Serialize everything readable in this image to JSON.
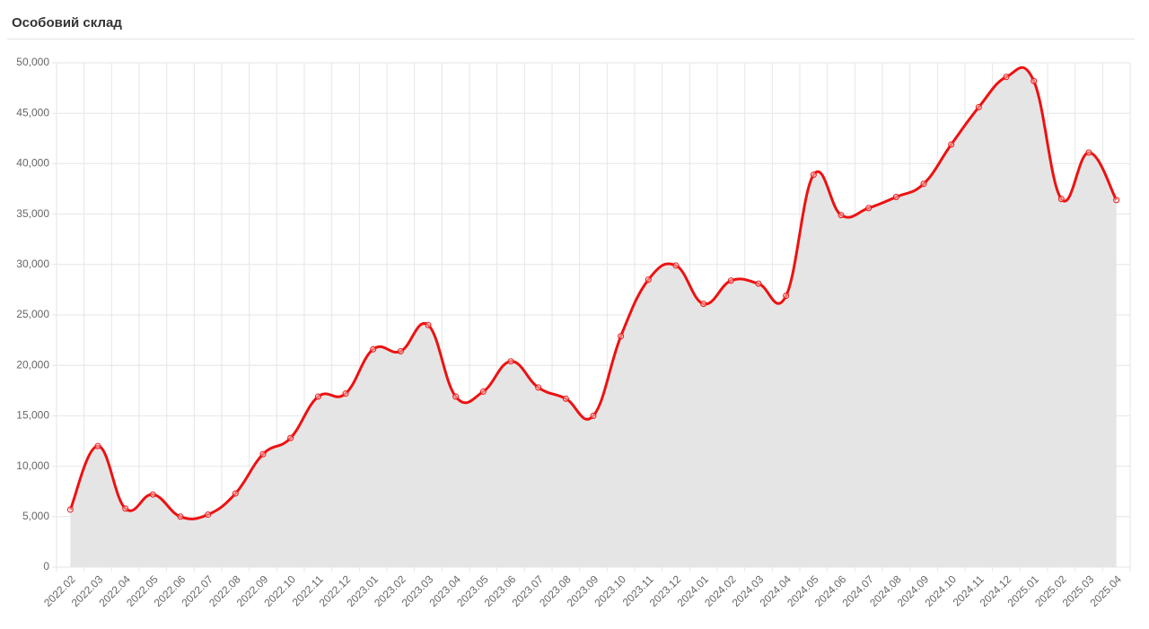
{
  "chart_data": {
    "type": "line",
    "title": "Особовий склад",
    "categories": [
      "2022.02",
      "2022.03",
      "2022.04",
      "2022.05",
      "2022.06",
      "2022.07",
      "2022.08",
      "2022.09",
      "2022.10",
      "2022.11",
      "2022.12",
      "2023.01",
      "2023.02",
      "2023.03",
      "2023.04",
      "2023.05",
      "2023.06",
      "2023.07",
      "2023.08",
      "2023.09",
      "2023.10",
      "2023.11",
      "2023.12",
      "2024.01",
      "2024.02",
      "2024.03",
      "2024.04",
      "2024.05",
      "2024.06",
      "2024.07",
      "2024.08",
      "2024.09",
      "2024.10",
      "2024.11",
      "2024.12",
      "2025.01",
      "2025.02",
      "2025.03",
      "2025.04"
    ],
    "values": [
      5700,
      12000,
      5800,
      7200,
      5000,
      5200,
      7300,
      11200,
      12800,
      16900,
      17200,
      21600,
      21400,
      24000,
      16900,
      17400,
      20400,
      17800,
      16700,
      15000,
      22900,
      28500,
      29900,
      26100,
      28400,
      28100,
      26900,
      38900,
      34900,
      35600,
      36700,
      38000,
      41900,
      45600,
      48600,
      48200,
      36500,
      41100,
      36400
    ],
    "color": "#ee1111",
    "area_color": "#e5e5e5",
    "ylim": [
      0,
      50000
    ],
    "yticks": [
      0,
      {
        "value": 5000,
        "label": "5,000"
      },
      {
        "value": 10000,
        "label": "10,000"
      },
      {
        "value": 15000,
        "label": "15,000"
      },
      {
        "value": 20000,
        "label": "20,000"
      },
      {
        "value": 25000,
        "label": "25,000"
      },
      {
        "value": 30000,
        "label": "30,000"
      },
      {
        "value": 35000,
        "label": "35,000"
      },
      {
        "value": 40000,
        "label": "40,000"
      },
      {
        "value": 45000,
        "label": "45,000"
      },
      {
        "value": 50000,
        "label": "50,000"
      }
    ],
    "grid": true
  }
}
